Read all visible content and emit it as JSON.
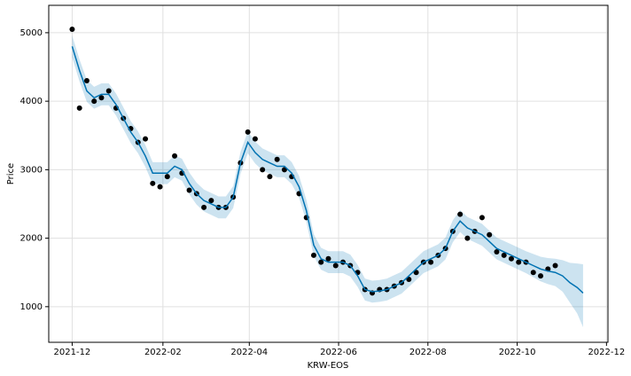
{
  "chart_data": {
    "type": "line",
    "xlabel": "KRW-EOS",
    "ylabel": "Price",
    "xlim": [
      -16,
      366
    ],
    "ylim": [
      480,
      5400
    ],
    "xticks": [
      {
        "value": 0,
        "label": "2021-12"
      },
      {
        "value": 62,
        "label": "2022-02"
      },
      {
        "value": 121,
        "label": "2022-04"
      },
      {
        "value": 182,
        "label": "2022-06"
      },
      {
        "value": 243,
        "label": "2022-08"
      },
      {
        "value": 304,
        "label": "2022-10"
      },
      {
        "value": 365,
        "label": "2022-12"
      }
    ],
    "yticks": [
      1000,
      2000,
      3000,
      4000,
      5000
    ],
    "grid": true,
    "forecast": {
      "color": "#0072B2",
      "band_color": "#0072B2",
      "x": [
        0,
        5,
        10,
        15,
        20,
        25,
        30,
        35,
        40,
        45,
        50,
        55,
        60,
        65,
        70,
        75,
        80,
        85,
        90,
        95,
        100,
        105,
        110,
        115,
        120,
        125,
        130,
        135,
        140,
        145,
        150,
        155,
        160,
        165,
        170,
        175,
        180,
        185,
        190,
        195,
        200,
        205,
        210,
        215,
        220,
        225,
        230,
        235,
        240,
        245,
        250,
        255,
        260,
        265,
        270,
        275,
        280,
        285,
        290,
        295,
        300,
        305,
        310,
        315,
        320,
        325,
        330,
        335,
        340,
        345,
        349
      ],
      "values": [
        4800,
        4450,
        4150,
        4050,
        4100,
        4100,
        3950,
        3750,
        3550,
        3400,
        3200,
        2950,
        2950,
        2950,
        3050,
        3000,
        2800,
        2650,
        2550,
        2500,
        2450,
        2450,
        2600,
        3100,
        3400,
        3250,
        3150,
        3100,
        3050,
        3050,
        2950,
        2750,
        2400,
        1900,
        1700,
        1650,
        1650,
        1650,
        1600,
        1450,
        1250,
        1220,
        1230,
        1250,
        1300,
        1350,
        1450,
        1550,
        1650,
        1700,
        1750,
        1850,
        2100,
        2250,
        2150,
        2100,
        2050,
        1950,
        1850,
        1800,
        1750,
        1700,
        1650,
        1600,
        1550,
        1520,
        1500,
        1450,
        1350,
        1280,
        1200
      ],
      "upper": [
        4960,
        4610,
        4310,
        4210,
        4260,
        4260,
        4110,
        3910,
        3710,
        3560,
        3360,
        3110,
        3110,
        3110,
        3210,
        3160,
        2960,
        2810,
        2710,
        2660,
        2610,
        2610,
        2760,
        3260,
        3560,
        3410,
        3310,
        3260,
        3210,
        3210,
        3110,
        2910,
        2560,
        2060,
        1860,
        1810,
        1810,
        1810,
        1760,
        1610,
        1410,
        1380,
        1390,
        1410,
        1460,
        1510,
        1610,
        1710,
        1810,
        1860,
        1910,
        2010,
        2260,
        2410,
        2310,
        2260,
        2210,
        2110,
        2010,
        1960,
        1910,
        1860,
        1810,
        1770,
        1730,
        1710,
        1700,
        1680,
        1640,
        1630,
        1620
      ],
      "lower": [
        4640,
        4290,
        3990,
        3890,
        3940,
        3940,
        3790,
        3590,
        3390,
        3240,
        3040,
        2790,
        2790,
        2790,
        2890,
        2840,
        2640,
        2490,
        2390,
        2340,
        2290,
        2290,
        2440,
        2940,
        3240,
        3090,
        2990,
        2940,
        2890,
        2890,
        2790,
        2590,
        2240,
        1740,
        1540,
        1490,
        1490,
        1490,
        1440,
        1290,
        1090,
        1060,
        1070,
        1090,
        1140,
        1190,
        1290,
        1390,
        1490,
        1540,
        1590,
        1690,
        1940,
        2090,
        1990,
        1940,
        1890,
        1790,
        1690,
        1640,
        1590,
        1540,
        1490,
        1430,
        1370,
        1330,
        1300,
        1220,
        1060,
        900,
        700
      ]
    },
    "observations": {
      "color": "#000000",
      "x": [
        0,
        5,
        10,
        15,
        20,
        25,
        30,
        35,
        40,
        45,
        50,
        55,
        60,
        65,
        70,
        75,
        80,
        85,
        90,
        95,
        100,
        105,
        110,
        115,
        120,
        125,
        130,
        135,
        140,
        145,
        150,
        155,
        160,
        165,
        170,
        175,
        180,
        185,
        190,
        195,
        200,
        205,
        210,
        215,
        220,
        225,
        230,
        235,
        240,
        245,
        250,
        255,
        260,
        265,
        270,
        275,
        280,
        285,
        290,
        295,
        300,
        305,
        310,
        315,
        320,
        325,
        330
      ],
      "values": [
        5050,
        3900,
        4300,
        4000,
        4050,
        4150,
        3900,
        3750,
        3600,
        3400,
        3450,
        2800,
        2750,
        2900,
        3200,
        2950,
        2700,
        2650,
        2450,
        2550,
        2450,
        2450,
        2600,
        3100,
        3550,
        3450,
        3000,
        2900,
        3150,
        3000,
        2900,
        2650,
        2300,
        1750,
        1650,
        1700,
        1600,
        1650,
        1600,
        1500,
        1250,
        1200,
        1250,
        1250,
        1300,
        1350,
        1400,
        1500,
        1650,
        1650,
        1750,
        1850,
        2100,
        2350,
        2000,
        2100,
        2300,
        2050,
        1800,
        1750,
        1700,
        1650,
        1650,
        1500,
        1450,
        1550,
        1600
      ]
    }
  }
}
